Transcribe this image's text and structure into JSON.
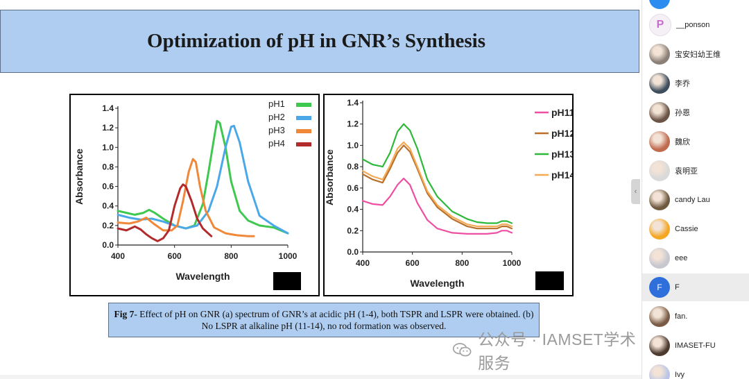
{
  "slide": {
    "title": "Optimization of pH in GNR’s Synthesis",
    "caption_bold": "Fig 7",
    "caption_text": "- Effect of pH on GNR (a) spectrum of GNR’s at acidic pH (1-4), both TSPR and LSPR were obtained. (b) No LSPR at alkaline pH (11-14), no rod formation was observed."
  },
  "chart_data": [
    {
      "type": "line",
      "xlabel": "Wavelength",
      "ylabel": "Absorbance",
      "xlim": [
        400,
        1000
      ],
      "ylim": [
        0,
        1.4
      ],
      "xticks": [
        "400",
        "600",
        "800",
        "1000"
      ],
      "yticks": [
        "0.0",
        "0.2",
        "0.4",
        "0.6",
        "0.8",
        "1.0",
        "1.2",
        "1.4"
      ],
      "legend_position": "top-right",
      "series": [
        {
          "name": "pH1",
          "color": "#3fc84f",
          "x": [
            400,
            430,
            460,
            490,
            510,
            530,
            560,
            600,
            640,
            670,
            700,
            720,
            740,
            750,
            760,
            780,
            800,
            830,
            860,
            900,
            950,
            1000
          ],
          "y": [
            0.35,
            0.33,
            0.31,
            0.33,
            0.36,
            0.33,
            0.27,
            0.2,
            0.17,
            0.2,
            0.42,
            0.75,
            1.1,
            1.27,
            1.25,
            1.0,
            0.65,
            0.35,
            0.25,
            0.2,
            0.18,
            0.12
          ]
        },
        {
          "name": "pH2",
          "color": "#4aa8e8",
          "x": [
            400,
            440,
            480,
            520,
            560,
            600,
            640,
            680,
            720,
            750,
            780,
            800,
            810,
            830,
            860,
            900,
            950,
            1000
          ],
          "y": [
            0.31,
            0.28,
            0.26,
            0.27,
            0.24,
            0.2,
            0.17,
            0.2,
            0.35,
            0.6,
            1.0,
            1.21,
            1.22,
            1.05,
            0.65,
            0.3,
            0.2,
            0.12
          ]
        },
        {
          "name": "pH3",
          "color": "#f0883a",
          "x": [
            400,
            440,
            470,
            500,
            530,
            560,
            590,
            610,
            630,
            650,
            665,
            675,
            690,
            710,
            740,
            780,
            820,
            860,
            880
          ],
          "y": [
            0.23,
            0.22,
            0.24,
            0.28,
            0.21,
            0.15,
            0.15,
            0.2,
            0.45,
            0.75,
            0.88,
            0.85,
            0.6,
            0.35,
            0.18,
            0.12,
            0.1,
            0.09,
            0.09
          ]
        },
        {
          "name": "pH4",
          "color": "#b32a2a",
          "x": [
            400,
            430,
            460,
            480,
            500,
            520,
            540,
            560,
            580,
            600,
            620,
            630,
            640,
            660,
            680,
            700,
            730
          ],
          "y": [
            0.17,
            0.15,
            0.19,
            0.16,
            0.11,
            0.07,
            0.04,
            0.07,
            0.15,
            0.4,
            0.58,
            0.62,
            0.6,
            0.45,
            0.27,
            0.17,
            0.09
          ]
        }
      ]
    },
    {
      "type": "line",
      "xlabel": "Wavelength",
      "ylabel": "Absorbance",
      "xlim": [
        400,
        1000
      ],
      "ylim": [
        0,
        1.4
      ],
      "xticks": [
        "400",
        "600",
        "800",
        "1000"
      ],
      "yticks": [
        "0.0",
        "0.2",
        "0.4",
        "0.6",
        "0.8",
        "1.0",
        "1.2",
        "1.4"
      ],
      "legend_position": "top-right",
      "series": [
        {
          "name": "pH11",
          "color": "#ee4fa2",
          "x": [
            400,
            440,
            480,
            510,
            540,
            565,
            590,
            620,
            660,
            700,
            760,
            820,
            860,
            900,
            940,
            960,
            980,
            1000
          ],
          "y": [
            0.48,
            0.45,
            0.44,
            0.52,
            0.63,
            0.69,
            0.63,
            0.46,
            0.3,
            0.22,
            0.18,
            0.17,
            0.17,
            0.17,
            0.18,
            0.2,
            0.2,
            0.18
          ]
        },
        {
          "name": "pH12",
          "color": "#b8702a",
          "x": [
            400,
            440,
            480,
            510,
            540,
            565,
            590,
            620,
            660,
            700,
            760,
            820,
            860,
            900,
            940,
            960,
            980,
            1000
          ],
          "y": [
            0.73,
            0.68,
            0.65,
            0.78,
            0.93,
            1.0,
            0.94,
            0.78,
            0.55,
            0.42,
            0.31,
            0.24,
            0.22,
            0.22,
            0.22,
            0.24,
            0.24,
            0.22
          ]
        },
        {
          "name": "pH13",
          "color": "#2db83a",
          "x": [
            400,
            440,
            480,
            510,
            540,
            565,
            590,
            620,
            660,
            700,
            760,
            820,
            860,
            900,
            940,
            960,
            980,
            1000
          ],
          "y": [
            0.87,
            0.82,
            0.8,
            0.93,
            1.13,
            1.2,
            1.14,
            0.97,
            0.68,
            0.52,
            0.38,
            0.31,
            0.28,
            0.27,
            0.27,
            0.29,
            0.29,
            0.27
          ]
        },
        {
          "name": "pH14",
          "color": "#f5aa55",
          "x": [
            400,
            440,
            480,
            510,
            540,
            565,
            590,
            620,
            660,
            700,
            760,
            820,
            860,
            900,
            940,
            960,
            980,
            1000
          ],
          "y": [
            0.76,
            0.71,
            0.68,
            0.81,
            0.97,
            1.03,
            0.97,
            0.8,
            0.57,
            0.44,
            0.33,
            0.26,
            0.24,
            0.24,
            0.24,
            0.26,
            0.26,
            0.24
          ]
        }
      ]
    }
  ],
  "watermark": {
    "text": "公众号 · IAMSET学术服务",
    "icon": "wechat-icon"
  },
  "participants": [
    {
      "name": "",
      "avatar": "globe",
      "color": "#2d8cf0"
    },
    {
      "name": "__ponson",
      "avatar": "logo",
      "color": "#f4f0f6"
    },
    {
      "name": "宝安妇幼王维",
      "avatar": "photo",
      "color": "#8a8078"
    },
    {
      "name": "李乔",
      "avatar": "photo",
      "color": "#3e4e5c"
    },
    {
      "name": "孙恩",
      "avatar": "photo",
      "color": "#6b5446"
    },
    {
      "name": "魏欣",
      "avatar": "photo",
      "color": "#c06a4e"
    },
    {
      "name": "袁明亚",
      "avatar": "photo",
      "color": "#d9d9d9"
    },
    {
      "name": "candy Lau",
      "avatar": "photo",
      "color": "#6f5a40"
    },
    {
      "name": "Cassie",
      "avatar": "cartoon",
      "color": "#f5a623"
    },
    {
      "name": "eee",
      "avatar": "photo",
      "color": "#c7c7d0"
    },
    {
      "name": "F",
      "avatar": "letter",
      "letter": "F",
      "color": "#2f6fdc"
    },
    {
      "name": "fan.",
      "avatar": "photo",
      "color": "#7a5c46"
    },
    {
      "name": "IMASET-FU",
      "avatar": "photo",
      "color": "#4d3a2e"
    },
    {
      "name": "Ivy",
      "avatar": "cartoon",
      "color": "#b9c4e8"
    }
  ]
}
